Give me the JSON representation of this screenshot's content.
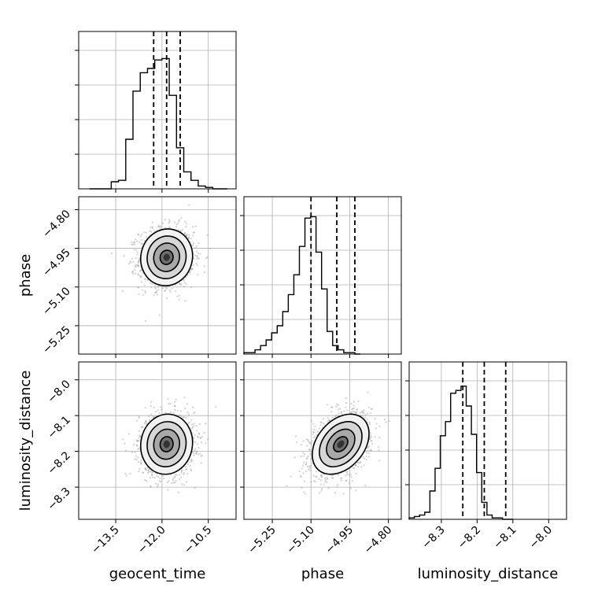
{
  "chart_data": {
    "type": "corner",
    "parameters": [
      {
        "name": "geocent_time",
        "label": "geocent_time",
        "range": [
          -14.7,
          -9.6
        ],
        "ticks": [
          "−13.5",
          "−12.0",
          "−10.5"
        ],
        "tick_values": [
          -13.5,
          -12.0,
          -10.5
        ],
        "quantiles": [
          -12.27,
          -11.85,
          -11.41
        ],
        "center": -11.85,
        "sigma": 0.42
      },
      {
        "name": "phase",
        "label": "phase",
        "range": [
          -5.36,
          -4.75
        ],
        "ticks": [
          "−5.25",
          "−5.10",
          "−4.95",
          "−4.80"
        ],
        "tick_values": [
          -5.25,
          -5.1,
          -4.95,
          -4.8
        ],
        "quantiles": [
          -5.1,
          -5.0,
          -4.93
        ],
        "center": -4.985,
        "sigma": 0.055
      },
      {
        "name": "luminosity_distance",
        "label": "luminosity_distance",
        "range": [
          -8.39,
          -7.95
        ],
        "ticks": [
          "−8.3",
          "−8.2",
          "−8.1",
          "−8.0"
        ],
        "tick_values": [
          -8.3,
          -8.2,
          -8.1,
          -8.0
        ],
        "quantiles": [
          -8.24,
          -8.18,
          -8.12
        ],
        "center": -8.18,
        "sigma": 0.042
      }
    ],
    "histograms": [
      {
        "param": "geocent_time",
        "bin_edges_start": -14.35,
        "bin_width": 0.235,
        "counts": [
          0,
          0,
          0,
          0.05,
          0.06,
          0.35,
          0.69,
          0.82,
          0.85,
          0.91,
          0.92,
          0.66,
          0.29,
          0.12,
          0.06,
          0.02,
          0.01,
          0,
          0
        ]
      },
      {
        "param": "phase",
        "bin_edges_start": -5.36,
        "bin_width": 0.0215,
        "counts": [
          0.01,
          0.01,
          0.03,
          0.06,
          0.1,
          0.15,
          0.2,
          0.3,
          0.42,
          0.56,
          0.76,
          0.96,
          0.97,
          0.72,
          0.46,
          0.16,
          0.06,
          0.03,
          0.01,
          0.01,
          0
        ]
      },
      {
        "param": "luminosity_distance",
        "bin_edges_start": -8.39,
        "bin_width": 0.0145,
        "counts": [
          0.01,
          0.02,
          0.03,
          0.05,
          0.2,
          0.36,
          0.59,
          0.69,
          0.89,
          0.91,
          0.94,
          0.8,
          0.6,
          0.33,
          0.12,
          0.03,
          0.01,
          0.01,
          0,
          0
        ]
      }
    ],
    "correlations": {
      "phase|geocent_time": 0.05,
      "luminosity_distance|geocent_time": 0.05,
      "luminosity_distance|phase": 0.35
    },
    "contour_levels_sigma": [
      0.5,
      1.0,
      1.5,
      2.0
    ],
    "grid": true
  },
  "colors": {
    "hist": "#000000",
    "scatter": "#9a9a9a",
    "contour": "#000000",
    "grid": "#b0b0b0"
  }
}
